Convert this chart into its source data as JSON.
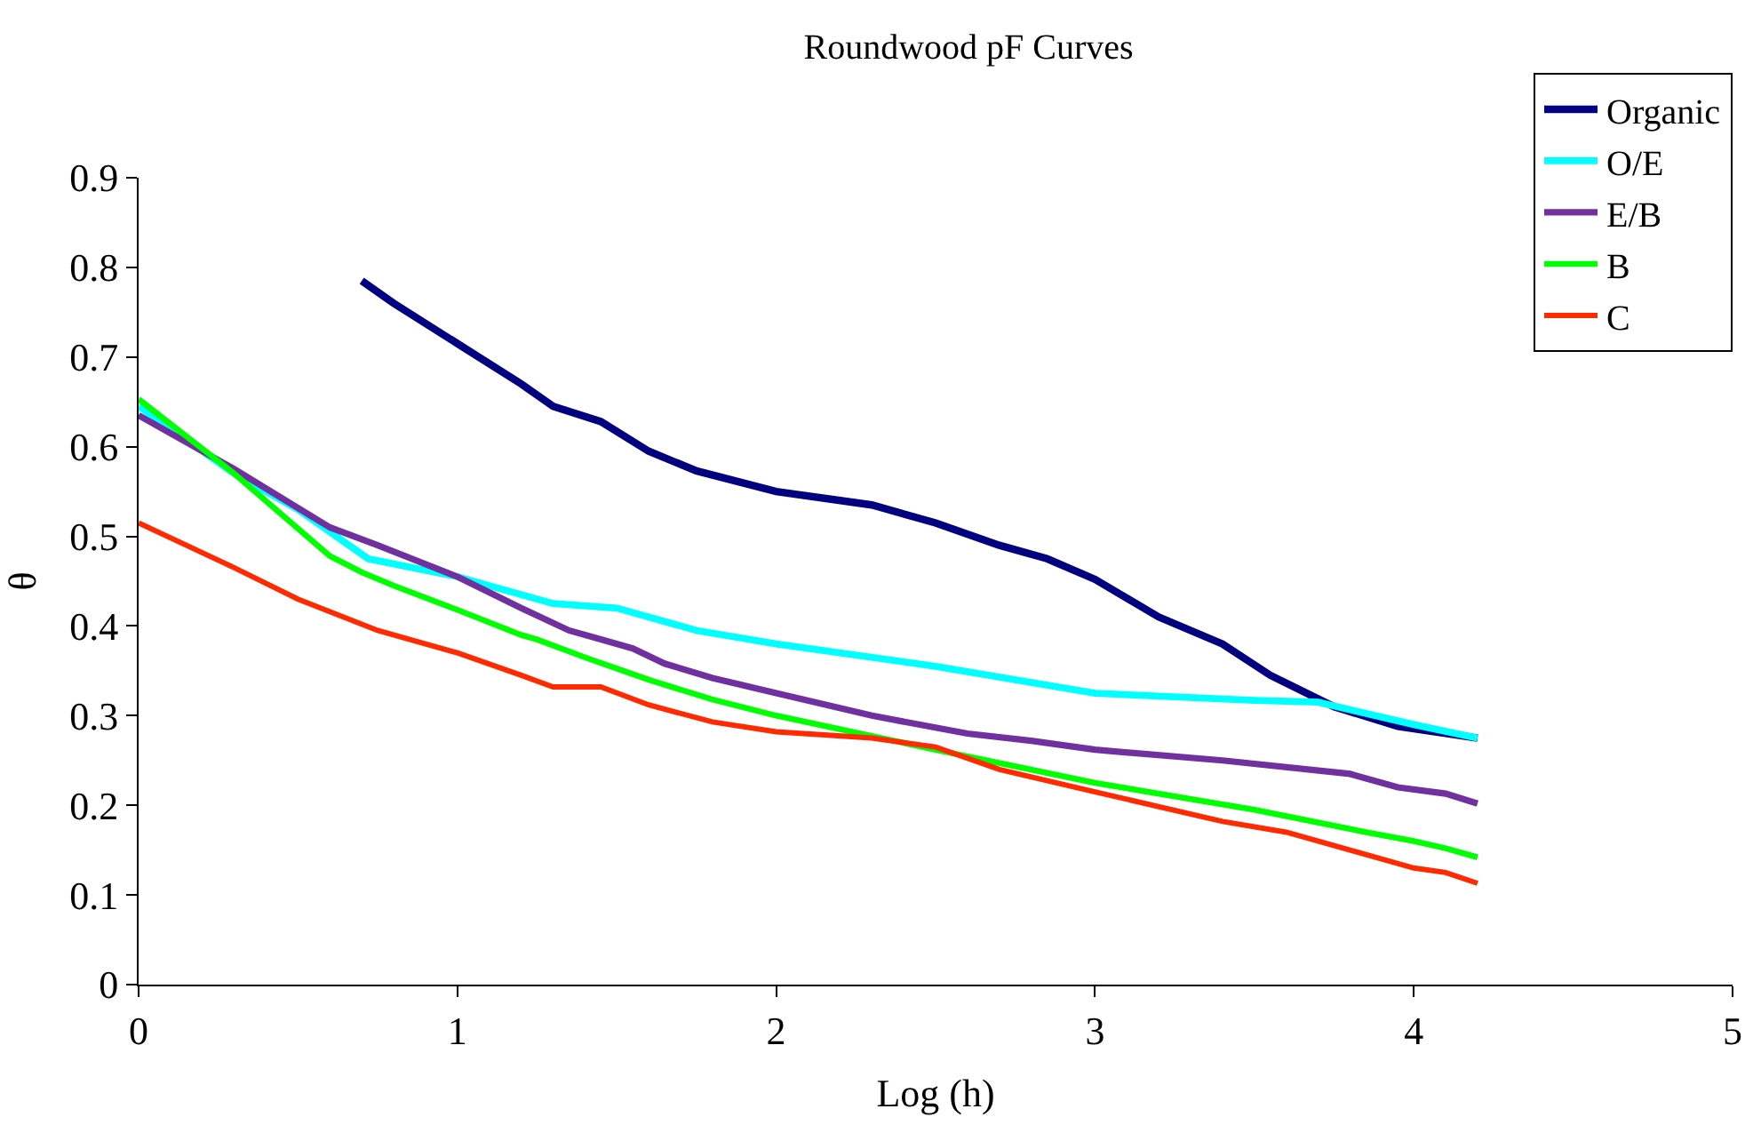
{
  "chart_data": {
    "type": "line",
    "title": "Roundwood pF Curves",
    "xlabel": "Log (h)",
    "ylabel": "θ",
    "xlim": [
      0,
      5
    ],
    "xticks": [
      0,
      1,
      2,
      3,
      4,
      5
    ],
    "ylim": [
      0,
      0.9
    ],
    "yticks": [
      0,
      0.1,
      0.2,
      0.3,
      0.4,
      0.5,
      0.6,
      0.7,
      0.8,
      0.9
    ],
    "grid": false,
    "legend": "top right",
    "marker": "none",
    "line_style": "solid",
    "series": [
      {
        "name": "Organic",
        "color": "#000080",
        "x": [
          0.7,
          0.8,
          1.0,
          1.2,
          1.3,
          1.45,
          1.6,
          1.75,
          2.0,
          2.3,
          2.5,
          2.7,
          2.85,
          3.0,
          3.2,
          3.4,
          3.55,
          3.75,
          3.95,
          4.2
        ],
        "values": [
          0.785,
          0.76,
          0.715,
          0.67,
          0.645,
          0.628,
          0.595,
          0.573,
          0.55,
          0.535,
          0.515,
          0.49,
          0.475,
          0.452,
          0.41,
          0.38,
          0.345,
          0.31,
          0.288,
          0.275
        ]
      },
      {
        "name": "O/E",
        "color": "#00ffff",
        "x": [
          0,
          0.3,
          0.5,
          0.72,
          1.0,
          1.3,
          1.5,
          1.75,
          2.0,
          2.5,
          3.0,
          3.5,
          3.7,
          4.0,
          4.2
        ],
        "values": [
          0.645,
          0.57,
          0.53,
          0.475,
          0.455,
          0.425,
          0.42,
          0.395,
          0.38,
          0.355,
          0.325,
          0.317,
          0.315,
          0.29,
          0.275
        ]
      },
      {
        "name": "E/B",
        "color": "#7030a0",
        "x": [
          0,
          0.3,
          0.6,
          0.75,
          1.0,
          1.2,
          1.35,
          1.45,
          1.55,
          1.65,
          1.8,
          2.0,
          2.3,
          2.6,
          2.8,
          3.0,
          3.4,
          3.8,
          3.95,
          4.1,
          4.2
        ],
        "values": [
          0.635,
          0.575,
          0.51,
          0.49,
          0.455,
          0.42,
          0.395,
          0.385,
          0.375,
          0.358,
          0.342,
          0.325,
          0.3,
          0.28,
          0.272,
          0.262,
          0.25,
          0.235,
          0.22,
          0.213,
          0.202
        ]
      },
      {
        "name": "B",
        "color": "#00ff00",
        "x": [
          0,
          0.3,
          0.6,
          0.7,
          0.8,
          1.0,
          1.2,
          1.25,
          1.4,
          1.6,
          1.8,
          2.0,
          2.5,
          3.0,
          3.5,
          3.85,
          4.0,
          4.1,
          4.2
        ],
        "values": [
          0.653,
          0.57,
          0.478,
          0.46,
          0.445,
          0.418,
          0.39,
          0.385,
          0.365,
          0.34,
          0.318,
          0.3,
          0.262,
          0.225,
          0.195,
          0.17,
          0.16,
          0.152,
          0.142
        ]
      },
      {
        "name": "C",
        "color": "#ff2a00",
        "x": [
          0,
          0.3,
          0.5,
          0.75,
          0.9,
          1.0,
          1.2,
          1.3,
          1.45,
          1.6,
          1.8,
          2.0,
          2.3,
          2.5,
          2.7,
          3.0,
          3.4,
          3.6,
          3.8,
          4.0,
          4.1,
          4.2
        ],
        "values": [
          0.515,
          0.465,
          0.43,
          0.395,
          0.38,
          0.37,
          0.345,
          0.332,
          0.332,
          0.312,
          0.293,
          0.282,
          0.275,
          0.265,
          0.24,
          0.215,
          0.182,
          0.17,
          0.15,
          0.13,
          0.125,
          0.113
        ]
      }
    ]
  }
}
